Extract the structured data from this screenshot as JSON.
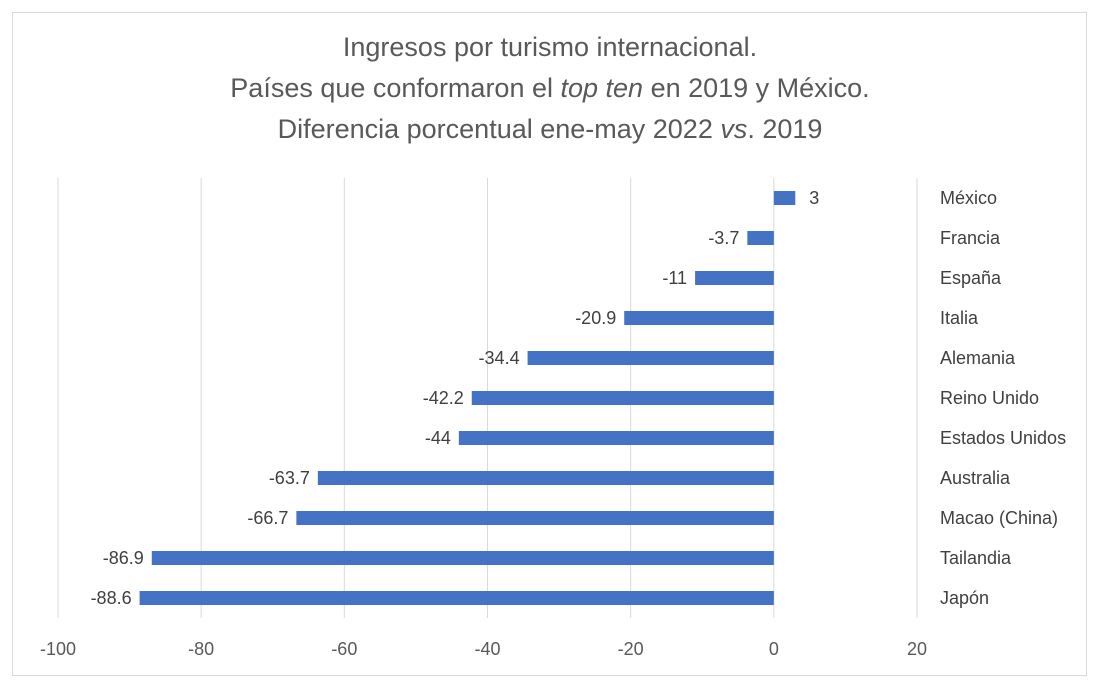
{
  "chart_data": {
    "type": "bar",
    "orientation": "horizontal",
    "title_lines": [
      [
        "Ingresos por turismo internacional."
      ],
      [
        "Países que conformaron el ",
        {
          "i": "top ten"
        },
        " en 2019 y México."
      ],
      [
        "Diferencia porcentual ene-may 2022 ",
        {
          "i": "vs"
        },
        ". 2019"
      ]
    ],
    "categories": [
      "México",
      "Francia",
      "España",
      "Italia",
      "Alemania",
      "Reino Unido",
      "Estados Unidos",
      "Australia",
      "Macao (China)",
      "Tailandia",
      "Japón"
    ],
    "values": [
      3,
      -3.7,
      -11,
      -20.9,
      -34.4,
      -42.2,
      -44,
      -63.7,
      -66.7,
      -86.9,
      -88.6
    ],
    "data_labels": [
      "3",
      "-3.7",
      "-11",
      "-20.9",
      "-34.4",
      "-42.2",
      "-44",
      "-63.7",
      "-66.7",
      "-86.9",
      "-88.6"
    ],
    "xlim": [
      -100,
      20
    ],
    "xticks": [
      "-100",
      "-80",
      "-60",
      "-40",
      "-20",
      "0",
      "20"
    ],
    "xlabel": "",
    "ylabel": "",
    "grid": "vertical",
    "legend": "none",
    "bar_color": "#4472C4"
  }
}
